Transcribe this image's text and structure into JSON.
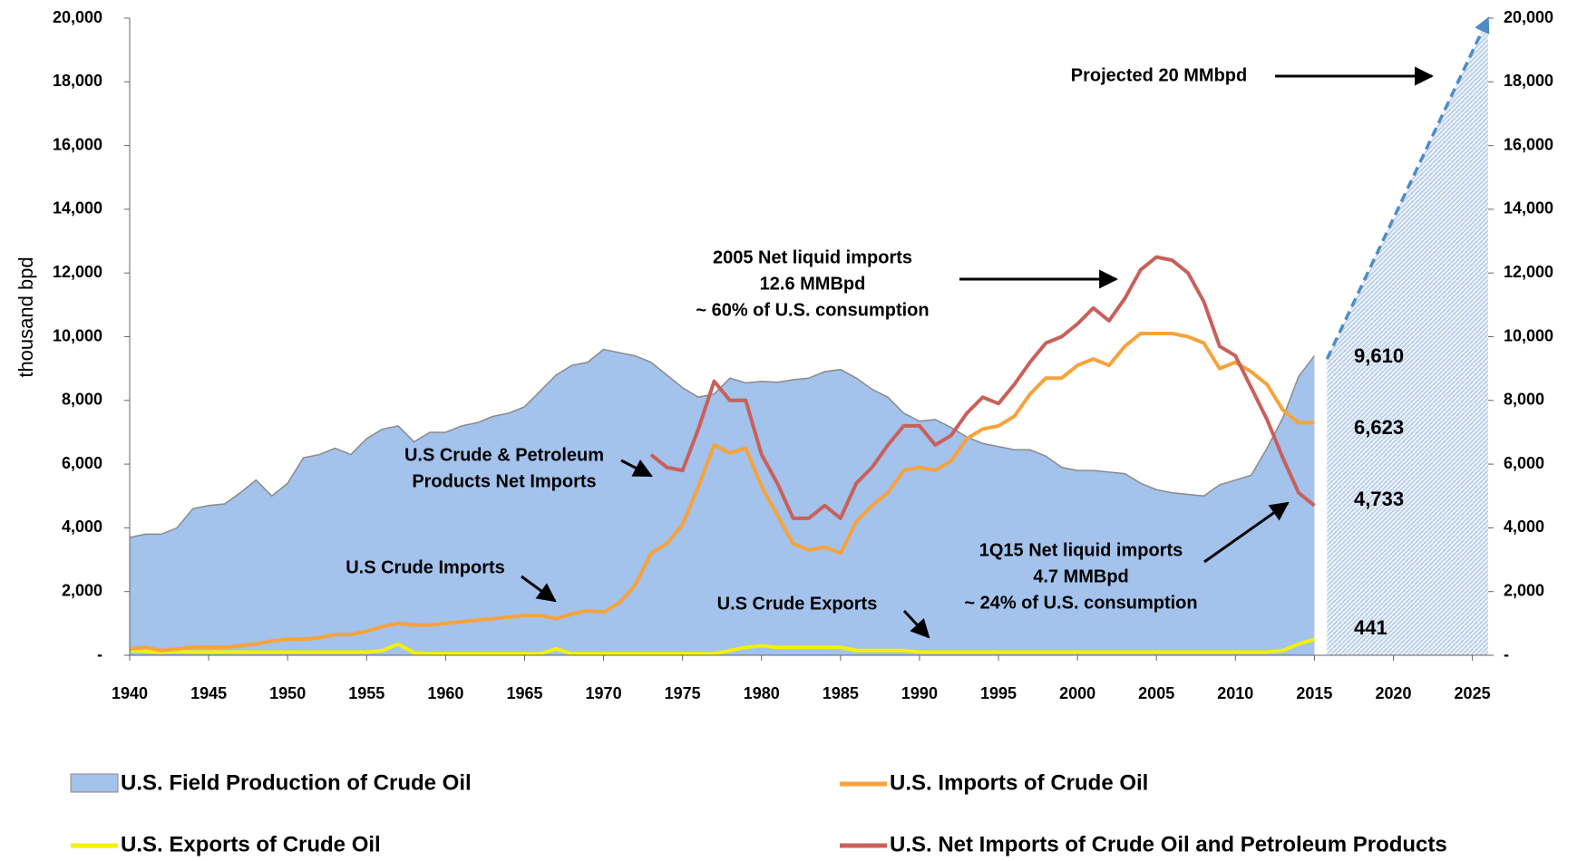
{
  "chart_data": {
    "type": "line",
    "ylabel": "thousand bpd",
    "x": [
      1940,
      1941,
      1942,
      1943,
      1944,
      1945,
      1946,
      1947,
      1948,
      1949,
      1950,
      1951,
      1952,
      1953,
      1954,
      1955,
      1956,
      1957,
      1958,
      1959,
      1960,
      1961,
      1962,
      1963,
      1964,
      1965,
      1966,
      1967,
      1968,
      1969,
      1970,
      1971,
      1972,
      1973,
      1974,
      1975,
      1976,
      1977,
      1978,
      1979,
      1980,
      1981,
      1982,
      1983,
      1984,
      1985,
      1986,
      1987,
      1988,
      1989,
      1990,
      1991,
      1992,
      1993,
      1994,
      1995,
      1996,
      1997,
      1998,
      1999,
      2000,
      2001,
      2002,
      2003,
      2004,
      2005,
      2006,
      2007,
      2008,
      2009,
      2010,
      2011,
      2012,
      2013,
      2014,
      2015
    ],
    "series": [
      {
        "name": "U.S. Field Production of Crude Oil",
        "type": "area",
        "color": "#a3c2ec",
        "edge_color": "#8a8a8a",
        "values": [
          3700,
          3800,
          3800,
          4000,
          4600,
          4700,
          4750,
          5100,
          5500,
          5000,
          5400,
          6200,
          6300,
          6500,
          6300,
          6800,
          7100,
          7200,
          6700,
          7000,
          7000,
          7200,
          7300,
          7500,
          7600,
          7800,
          8300,
          8800,
          9100,
          9200,
          9600,
          9500,
          9400,
          9200,
          8800,
          8400,
          8100,
          8200,
          8700,
          8550,
          8600,
          8570,
          8650,
          8700,
          8900,
          8970,
          8700,
          8350,
          8100,
          7600,
          7350,
          7400,
          7150,
          6850,
          6650,
          6550,
          6450,
          6450,
          6250,
          5900,
          5800,
          5800,
          5750,
          5700,
          5400,
          5200,
          5100,
          5050,
          5000,
          5350,
          5500,
          5650,
          6500,
          7450,
          8750,
          9400
        ]
      },
      {
        "name": "U.S. Imports of Crude Oil",
        "type": "line",
        "color": "#f7a33c",
        "values": [
          200,
          250,
          150,
          200,
          250,
          250,
          250,
          300,
          350,
          450,
          500,
          500,
          550,
          650,
          650,
          750,
          900,
          1000,
          950,
          950,
          1000,
          1050,
          1100,
          1150,
          1200,
          1250,
          1250,
          1150,
          1300,
          1400,
          1350,
          1650,
          2200,
          3200,
          3500,
          4100,
          5300,
          6600,
          6350,
          6500,
          5300,
          4400,
          3500,
          3300,
          3400,
          3200,
          4200,
          4700,
          5100,
          5800,
          5900,
          5800,
          6100,
          6800,
          7100,
          7200,
          7500,
          8200,
          8700,
          8700,
          9100,
          9300,
          9100,
          9700,
          10100,
          10100,
          10100,
          10000,
          9800,
          9000,
          9200,
          8900,
          8500,
          7700,
          7300,
          7300
        ]
      },
      {
        "name": "U.S. Exports of Crude Oil",
        "type": "line",
        "color": "#f2f200",
        "values": [
          150,
          120,
          100,
          120,
          100,
          100,
          100,
          100,
          100,
          100,
          100,
          100,
          100,
          100,
          100,
          100,
          150,
          350,
          80,
          50,
          50,
          50,
          50,
          50,
          50,
          50,
          50,
          200,
          50,
          50,
          50,
          50,
          50,
          50,
          50,
          50,
          50,
          50,
          150,
          250,
          300,
          250,
          250,
          250,
          250,
          250,
          150,
          150,
          150,
          150,
          100,
          100,
          100,
          100,
          100,
          100,
          100,
          100,
          100,
          100,
          100,
          100,
          100,
          100,
          100,
          100,
          100,
          100,
          100,
          100,
          100,
          100,
          100,
          150,
          350,
          500
        ]
      },
      {
        "name": "U.S. Net Imports of Crude Oil and Petroleum Products",
        "type": "line",
        "color": "#c9605a",
        "values": [
          null,
          null,
          null,
          null,
          null,
          null,
          null,
          null,
          null,
          null,
          null,
          null,
          null,
          null,
          null,
          null,
          null,
          null,
          null,
          null,
          null,
          null,
          null,
          null,
          null,
          null,
          null,
          null,
          null,
          null,
          null,
          null,
          null,
          6300,
          5900,
          5800,
          7100,
          8600,
          8000,
          8000,
          6300,
          5400,
          4300,
          4300,
          4700,
          4300,
          5400,
          5900,
          6600,
          7200,
          7200,
          6600,
          6900,
          7600,
          8100,
          7900,
          8500,
          9200,
          9800,
          10000,
          10400,
          10900,
          10500,
          11200,
          12100,
          12500,
          12400,
          12000,
          11100,
          9700,
          9400,
          8400,
          7400,
          6200,
          5100,
          4700
        ]
      }
    ],
    "projection": {
      "x": [
        2015.8,
        2026
      ],
      "values": [
        9300,
        20000
      ],
      "color": "#4e8cc8"
    },
    "end_labels": [
      "9,610",
      "6,623",
      "4,733",
      "441"
    ],
    "annotations": [
      {
        "lines": [
          "Projected 20 MMbpd"
        ]
      },
      {
        "lines": [
          "2005 Net liquid imports",
          "12.6 MMBpd",
          "~ 60% of U.S. consumption"
        ]
      },
      {
        "lines": [
          "U.S Crude & Petroleum",
          "Products Net Imports"
        ]
      },
      {
        "lines": [
          "U.S Crude Imports"
        ]
      },
      {
        "lines": [
          "U.S Crude Exports"
        ]
      },
      {
        "lines": [
          "1Q15 Net liquid imports",
          "4.7 MMBpd",
          "~ 24% of U.S. consumption"
        ]
      }
    ],
    "xlim": [
      1940,
      2026
    ],
    "xticks": [
      1940,
      1945,
      1950,
      1955,
      1960,
      1965,
      1970,
      1975,
      1980,
      1985,
      1990,
      1995,
      2000,
      2005,
      2010,
      2015,
      2020,
      2025
    ],
    "ylim": [
      0,
      20000
    ],
    "yticks": [
      {
        "value": 0,
        "label": "-"
      },
      {
        "value": 2000,
        "label": "2,000"
      },
      {
        "value": 4000,
        "label": "4,000"
      },
      {
        "value": 6000,
        "label": "6,000"
      },
      {
        "value": 8000,
        "label": "8,000"
      },
      {
        "value": 10000,
        "label": "10,000"
      },
      {
        "value": 12000,
        "label": "12,000"
      },
      {
        "value": 14000,
        "label": "14,000"
      },
      {
        "value": 16000,
        "label": "16,000"
      },
      {
        "value": 18000,
        "label": "18,000"
      },
      {
        "value": 20000,
        "label": "20,000"
      }
    ],
    "y2lim": [
      0,
      20000
    ],
    "y2ticks": [
      {
        "value": 0,
        "label": "-"
      },
      {
        "value": 2000,
        "label": "2,000"
      },
      {
        "value": 4000,
        "label": "4,000"
      },
      {
        "value": 6000,
        "label": "6,000"
      },
      {
        "value": 8000,
        "label": "8,000"
      },
      {
        "value": 10000,
        "label": "10,000"
      },
      {
        "value": 12000,
        "label": "12,000"
      },
      {
        "value": 14000,
        "label": "14,000"
      },
      {
        "value": 16000,
        "label": "16,000"
      },
      {
        "value": 18000,
        "label": "18,000"
      },
      {
        "value": 20000,
        "label": "20,000"
      }
    ],
    "grid": false
  }
}
